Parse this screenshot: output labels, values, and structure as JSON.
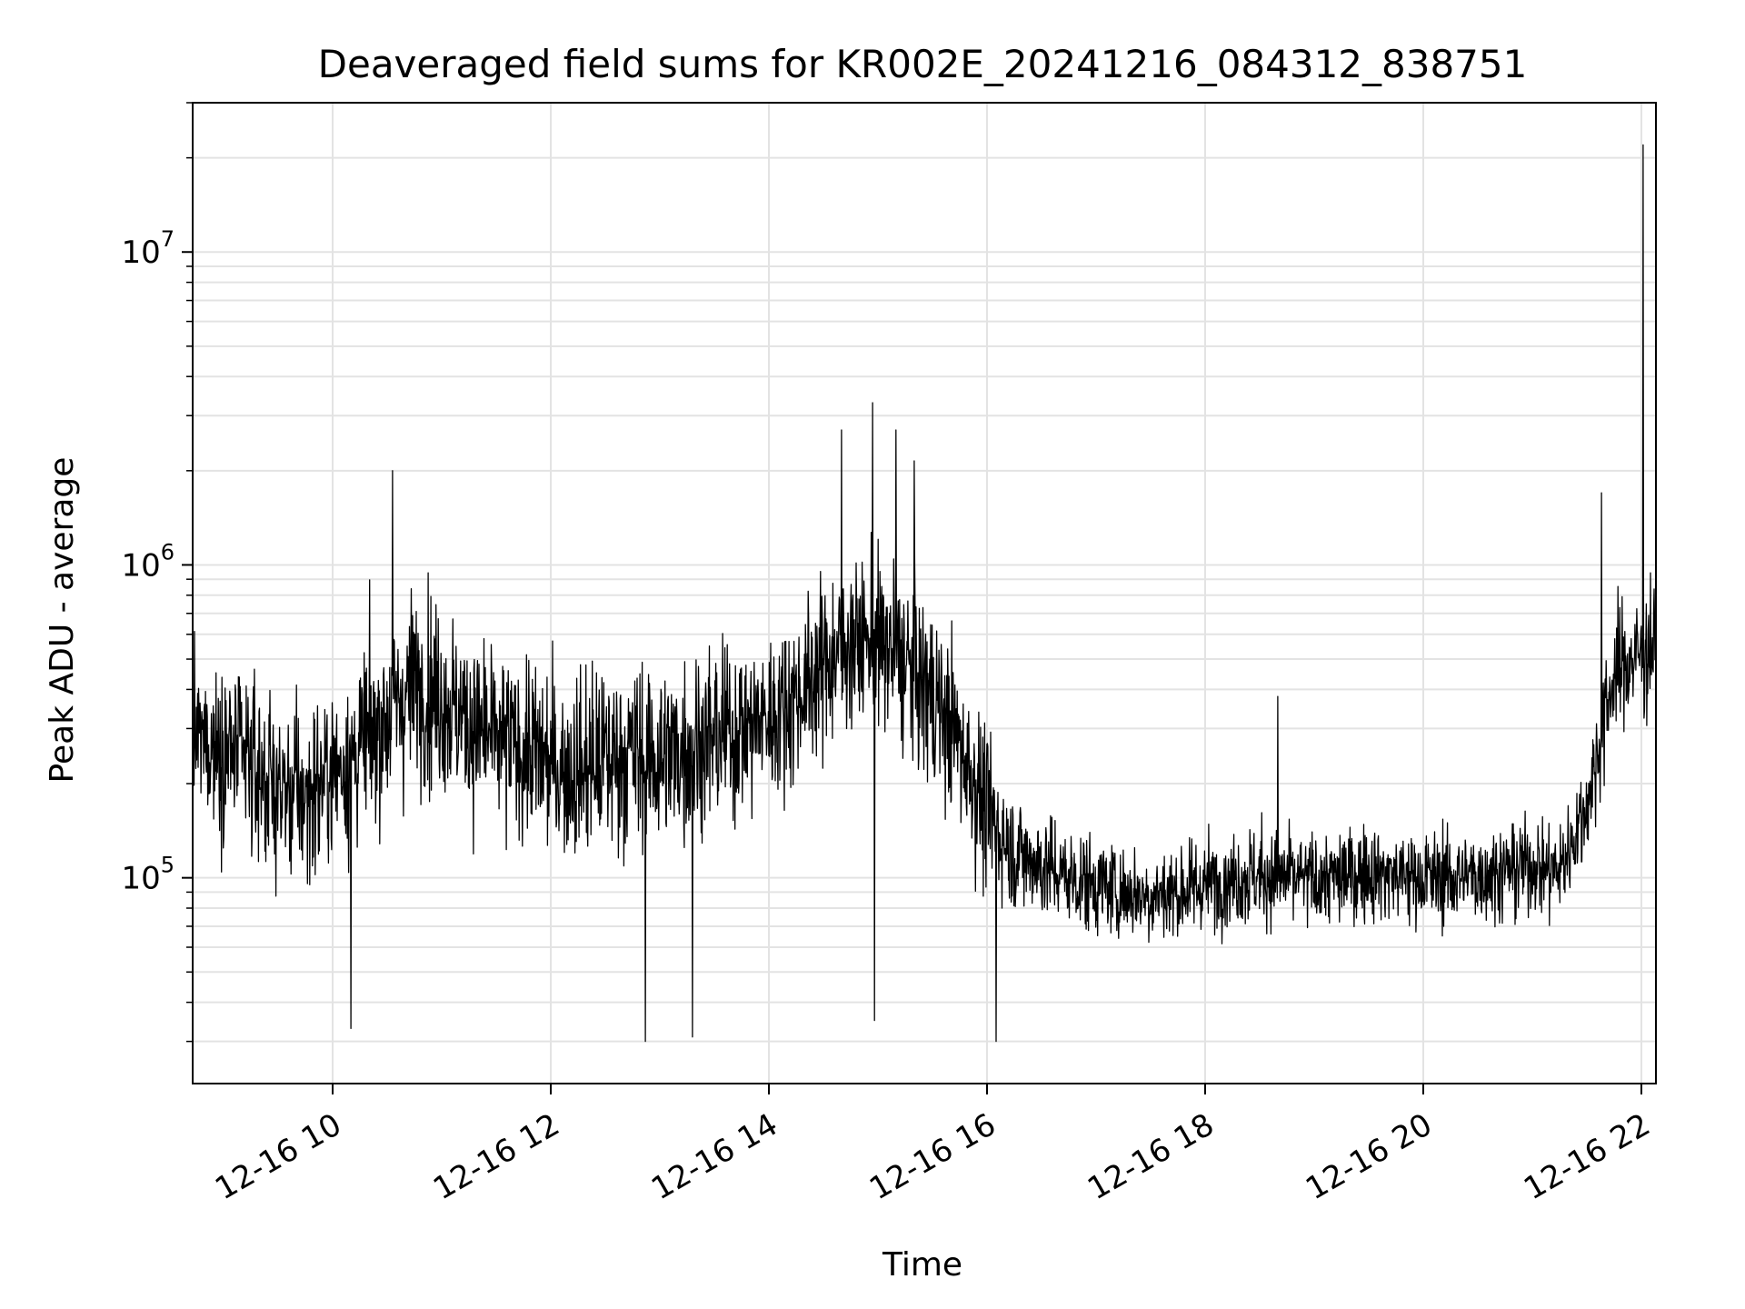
{
  "chart_data": {
    "type": "line",
    "title": "Deaveraged field sums for KR002E_20241216_084312_838751",
    "xlabel": "Time",
    "ylabel": "Peak ADU - average",
    "yscale": "log",
    "xlim": [
      "2024-12-16T08:43",
      "2024-12-16T22:08"
    ],
    "ylim": [
      22000,
      30000000
    ],
    "grid": true,
    "line_color": "#000000",
    "x_ticks": [
      {
        "value": "2024-12-16T10:00",
        "label": "12-16 10"
      },
      {
        "value": "2024-12-16T12:00",
        "label": "12-16 12"
      },
      {
        "value": "2024-12-16T14:00",
        "label": "12-16 14"
      },
      {
        "value": "2024-12-16T16:00",
        "label": "12-16 16"
      },
      {
        "value": "2024-12-16T18:00",
        "label": "12-16 18"
      },
      {
        "value": "2024-12-16T20:00",
        "label": "12-16 20"
      },
      {
        "value": "2024-12-16T22:00",
        "label": "12-16 22"
      }
    ],
    "y_ticks": [
      {
        "value": 100000,
        "base": "10",
        "exp": "5"
      },
      {
        "value": 1000000,
        "base": "10",
        "exp": "6"
      },
      {
        "value": 10000000,
        "base": "10",
        "exp": "7"
      }
    ],
    "series": [
      {
        "x": [
          "2024-12-16T08:43",
          "2024-12-16T09:00",
          "2024-12-16T09:15",
          "2024-12-16T09:30",
          "2024-12-16T09:45",
          "2024-12-16T10:00",
          "2024-12-16T10:15",
          "2024-12-16T10:30",
          "2024-12-16T10:45",
          "2024-12-16T11:00",
          "2024-12-16T11:15",
          "2024-12-16T11:30",
          "2024-12-16T11:45",
          "2024-12-16T12:00",
          "2024-12-16T12:15",
          "2024-12-16T12:30",
          "2024-12-16T12:45",
          "2024-12-16T13:00",
          "2024-12-16T13:15",
          "2024-12-16T13:30",
          "2024-12-16T13:45",
          "2024-12-16T14:00",
          "2024-12-16T14:15",
          "2024-12-16T14:30",
          "2024-12-16T14:45",
          "2024-12-16T15:00",
          "2024-12-16T15:15",
          "2024-12-16T15:30",
          "2024-12-16T15:45",
          "2024-12-16T16:00",
          "2024-12-16T16:15",
          "2024-12-16T16:30",
          "2024-12-16T16:45",
          "2024-12-16T17:00",
          "2024-12-16T17:15",
          "2024-12-16T17:30",
          "2024-12-16T17:45",
          "2024-12-16T18:00",
          "2024-12-16T18:15",
          "2024-12-16T18:30",
          "2024-12-16T18:45",
          "2024-12-16T19:00",
          "2024-12-16T19:15",
          "2024-12-16T19:30",
          "2024-12-16T19:45",
          "2024-12-16T20:00",
          "2024-12-16T20:15",
          "2024-12-16T20:30",
          "2024-12-16T20:45",
          "2024-12-16T21:00",
          "2024-12-16T21:15",
          "2024-12-16T21:30",
          "2024-12-16T21:45",
          "2024-12-16T21:55",
          "2024-12-16T22:00",
          "2024-12-16T22:08"
        ],
        "values": [
          280000,
          260000,
          230000,
          190000,
          180000,
          220000,
          260000,
          330000,
          420000,
          380000,
          310000,
          270000,
          260000,
          230000,
          220000,
          240000,
          250000,
          240000,
          260000,
          280000,
          300000,
          320000,
          380000,
          480000,
          570000,
          560000,
          480000,
          380000,
          270000,
          160000,
          120000,
          110000,
          100000,
          95000,
          90000,
          88000,
          90000,
          95000,
          100000,
          102000,
          100000,
          98000,
          100000,
          105000,
          102000,
          100000,
          100000,
          102000,
          105000,
          110000,
          105000,
          170000,
          450000,
          500000,
          520000,
          560000
        ],
        "spread_dec": [
          0.24,
          0.26,
          0.27,
          0.28,
          0.27,
          0.27,
          0.28,
          0.3,
          0.3,
          0.3,
          0.29,
          0.28,
          0.28,
          0.29,
          0.3,
          0.3,
          0.3,
          0.29,
          0.29,
          0.28,
          0.27,
          0.26,
          0.26,
          0.26,
          0.26,
          0.27,
          0.28,
          0.28,
          0.28,
          0.24,
          0.18,
          0.17,
          0.16,
          0.16,
          0.15,
          0.15,
          0.15,
          0.15,
          0.15,
          0.16,
          0.15,
          0.15,
          0.15,
          0.15,
          0.15,
          0.15,
          0.15,
          0.15,
          0.15,
          0.15,
          0.15,
          0.17,
          0.2,
          0.2,
          0.2,
          0.2
        ],
        "spikes": [
          {
            "x": "2024-12-16T10:10",
            "y": 33000
          },
          {
            "x": "2024-12-16T10:33",
            "y": 2000000
          },
          {
            "x": "2024-12-16T12:52",
            "y": 30000
          },
          {
            "x": "2024-12-16T13:18",
            "y": 31000
          },
          {
            "x": "2024-12-16T14:40",
            "y": 2700000
          },
          {
            "x": "2024-12-16T14:57",
            "y": 3300000
          },
          {
            "x": "2024-12-16T14:58",
            "y": 35000
          },
          {
            "x": "2024-12-16T15:10",
            "y": 2700000
          },
          {
            "x": "2024-12-16T15:20",
            "y": 2150000
          },
          {
            "x": "2024-12-16T16:05",
            "y": 30000
          },
          {
            "x": "2024-12-16T18:40",
            "y": 380000
          },
          {
            "x": "2024-12-16T21:38",
            "y": 1700000
          },
          {
            "x": "2024-12-16T22:01",
            "y": 22000000
          }
        ]
      }
    ]
  }
}
